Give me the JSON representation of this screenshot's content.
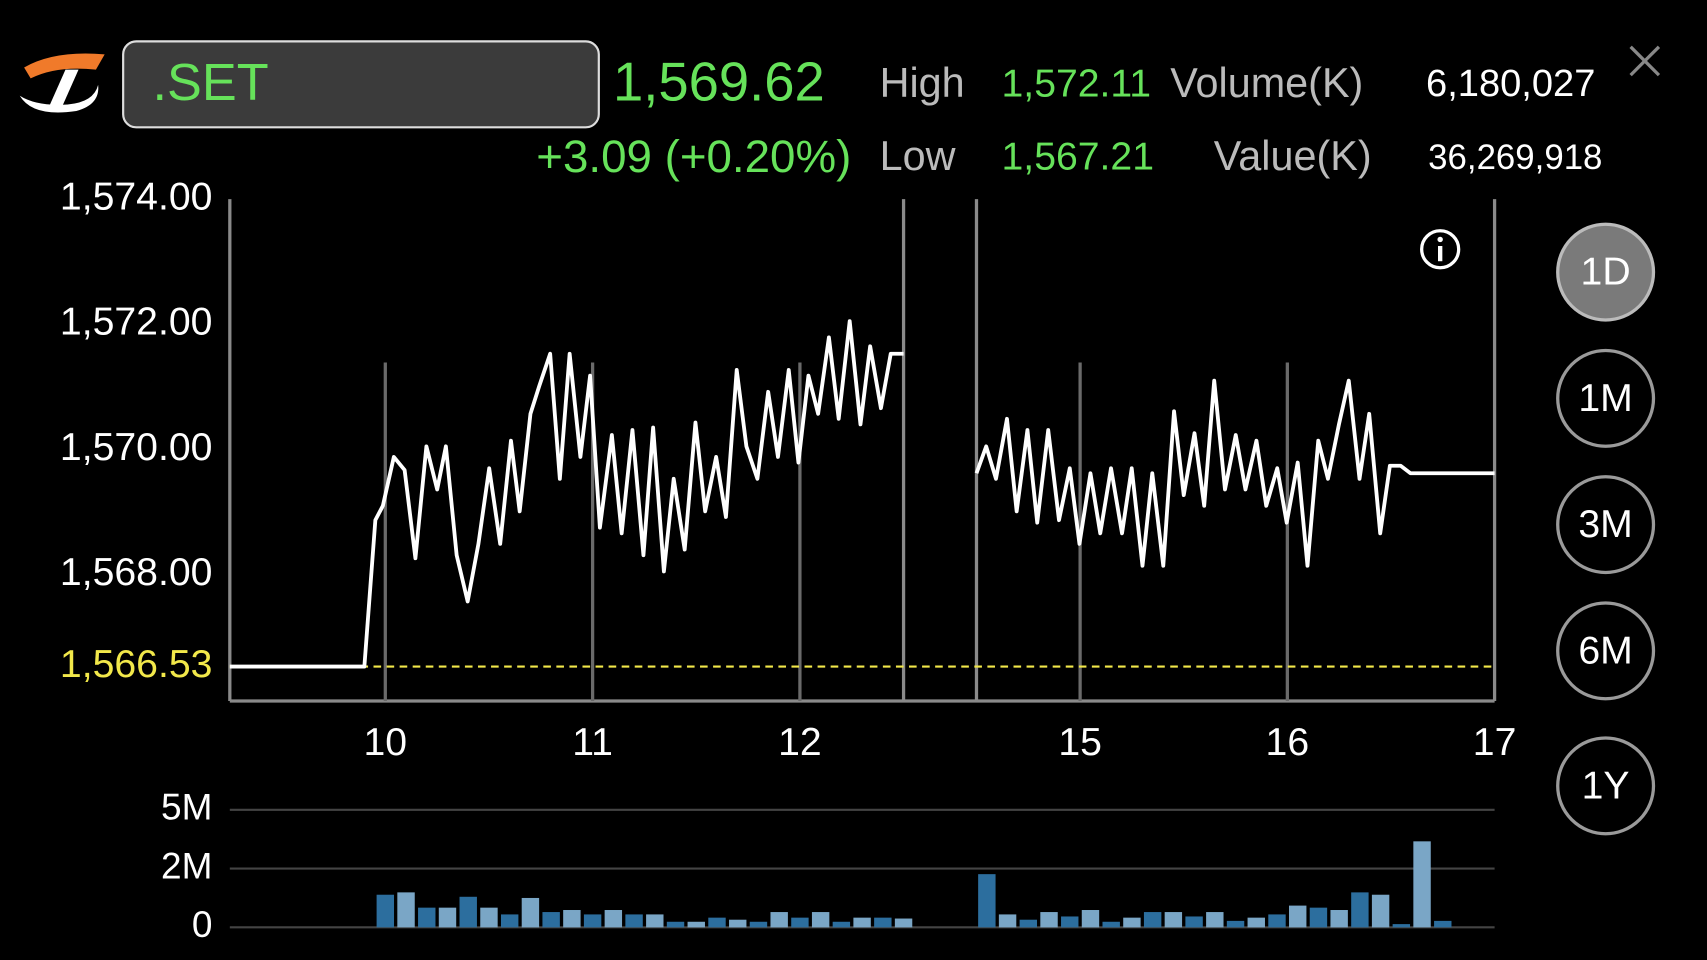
{
  "header": {
    "symbol": ".SET",
    "last": "1,569.62",
    "change": "+3.09 (+0.20%)",
    "high_label": "High",
    "high": "1,572.11",
    "low_label": "Low",
    "low": "1,567.21",
    "volume_label": "Volume(K)",
    "volume": "6,180,027",
    "value_label": "Value(K)",
    "value": "36,269,918"
  },
  "periods": {
    "buttons": [
      "1D",
      "1M",
      "3M",
      "6M",
      "1Y"
    ],
    "selected": "1D"
  },
  "chart_data": [
    {
      "type": "line",
      "x": [
        9.25,
        9.899,
        9.952,
        9.988,
        10.041,
        10.093,
        10.145,
        10.198,
        10.25,
        10.292,
        10.344,
        10.397,
        10.449,
        10.501,
        10.554,
        10.606,
        10.648,
        10.7,
        10.742,
        10.795,
        10.842,
        10.889,
        10.941,
        10.988,
        11.035,
        11.093,
        11.14,
        11.192,
        11.245,
        11.292,
        11.344,
        11.391,
        11.444,
        11.496,
        11.543,
        11.596,
        11.643,
        11.695,
        11.742,
        11.795,
        11.847,
        11.894,
        11.946,
        11.993,
        12.041,
        12.088,
        12.14,
        12.187,
        12.24,
        12.292,
        12.339,
        12.391,
        12.438,
        12.5,
        14.5,
        14.547,
        14.594,
        14.647,
        14.694,
        14.746,
        14.793,
        14.846,
        14.898,
        14.95,
        14.997,
        15.05,
        15.097,
        15.149,
        15.202,
        15.249,
        15.301,
        15.348,
        15.401,
        15.453,
        15.5,
        15.552,
        15.599,
        15.647,
        15.699,
        15.751,
        15.798,
        15.851,
        15.898,
        15.951,
        15.997,
        16.05,
        16.097,
        16.149,
        16.196,
        16.249,
        16.296,
        16.348,
        16.395,
        16.448,
        16.495,
        16.547,
        16.594,
        17
      ],
      "series": [
        {
          "color": "#ffffff",
          "values": [
            1566.53,
            1566.53,
            1568.87,
            1569.1,
            1569.88,
            1569.67,
            1568.26,
            1570.05,
            1569.36,
            1570.05,
            1568.31,
            1567.57,
            1568.49,
            1569.7,
            1568.49,
            1570.14,
            1569.01,
            1570.57,
            1571.01,
            1571.53,
            1569.53,
            1571.53,
            1569.88,
            1571.18,
            1568.75,
            1570.23,
            1568.66,
            1570.31,
            1568.31,
            1570.35,
            1568.05,
            1569.53,
            1568.4,
            1570.43,
            1569.01,
            1569.88,
            1568.92,
            1571.27,
            1570.05,
            1569.53,
            1570.92,
            1569.88,
            1571.27,
            1569.79,
            1571.18,
            1570.57,
            1571.79,
            1570.49,
            1572.05,
            1570.4,
            1571.65,
            1570.66,
            1571.53,
            1571.53,
            1569.62,
            1570.05,
            1569.53,
            1570.49,
            1569.01,
            1570.31,
            1568.83,
            1570.31,
            1568.87,
            1569.7,
            1568.49,
            1569.62,
            1568.66,
            1569.7,
            1568.66,
            1569.7,
            1568.14,
            1569.62,
            1568.14,
            1570.61,
            1569.27,
            1570.26,
            1569.1,
            1571.1,
            1569.36,
            1570.23,
            1569.36,
            1570.14,
            1569.1,
            1569.7,
            1568.83,
            1569.79,
            1568.14,
            1570.14,
            1569.53,
            1570.4,
            1571.1,
            1569.53,
            1570.57,
            1568.66,
            1569.74,
            1569.74,
            1569.62,
            1569.62
          ]
        }
      ],
      "xlim": [
        9.25,
        17
      ],
      "xbreak": [
        12.5,
        14.5
      ],
      "xticks": [
        10,
        11,
        12,
        15,
        16,
        17
      ],
      "ylim": [
        1565.98,
        1574
      ],
      "yticks": [
        {
          "value": 1568,
          "label": "1,568.00"
        },
        {
          "value": 1570,
          "label": "1,570.00"
        },
        {
          "value": 1572,
          "label": "1,572.00"
        },
        {
          "value": 1574,
          "label": "1,574.00"
        }
      ],
      "reference": {
        "value": 1566.53,
        "label": "1,566.53",
        "color": "#f2e84a"
      }
    },
    {
      "type": "bar",
      "x": [
        10.0,
        10.1,
        10.2,
        10.3,
        10.4,
        10.5,
        10.6,
        10.7,
        10.8,
        10.9,
        11.0,
        11.1,
        11.2,
        11.3,
        11.4,
        11.5,
        11.6,
        11.7,
        11.8,
        11.9,
        12.0,
        12.1,
        12.2,
        12.3,
        12.4,
        12.5,
        14.55,
        14.65,
        14.75,
        14.85,
        14.95,
        15.05,
        15.15,
        15.25,
        15.35,
        15.45,
        15.55,
        15.65,
        15.75,
        15.85,
        15.95,
        16.05,
        16.15,
        16.25,
        16.35,
        16.45,
        16.55,
        16.65,
        16.75
      ],
      "values": [
        1.11,
        1.19,
        0.67,
        0.67,
        1.04,
        0.67,
        0.44,
        1.0,
        0.52,
        0.59,
        0.44,
        0.59,
        0.44,
        0.44,
        0.19,
        0.19,
        0.33,
        0.26,
        0.19,
        0.52,
        0.33,
        0.52,
        0.19,
        0.33,
        0.33,
        0.3,
        1.81,
        0.44,
        0.26,
        0.52,
        0.37,
        0.59,
        0.19,
        0.33,
        0.52,
        0.52,
        0.37,
        0.52,
        0.22,
        0.33,
        0.44,
        0.74,
        0.67,
        0.59,
        1.19,
        1.11,
        0.11,
        3.39,
        0.22
      ],
      "colors": [
        "#2c6e9e",
        "#7aa6c6"
      ],
      "ylim": [
        0,
        5
      ],
      "yticks": [
        0,
        {
          "value": 2,
          "label": "2M"
        },
        {
          "value": 5,
          "label": "5M"
        }
      ]
    }
  ]
}
